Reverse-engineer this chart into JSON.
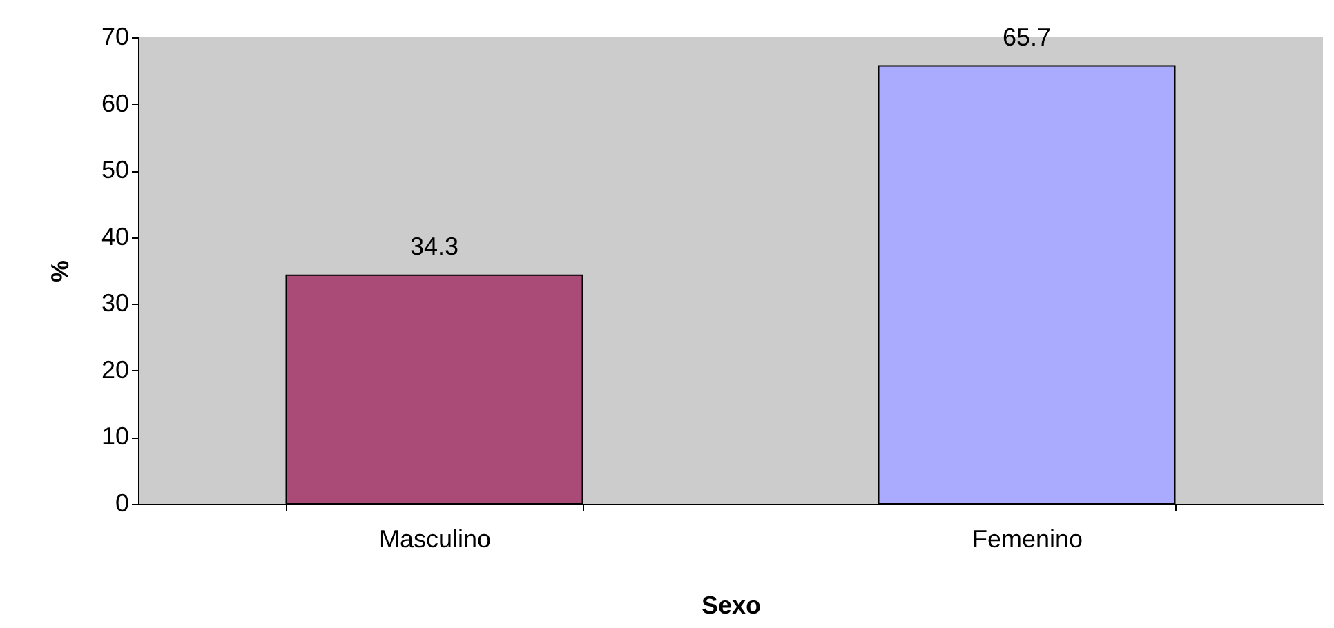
{
  "chart_data": {
    "type": "bar",
    "xlabel": "Sexo",
    "ylabel": "%",
    "categories": [
      "Masculino",
      "Femenino"
    ],
    "values": [
      34.3,
      65.7
    ],
    "colors": [
      "#a94a77",
      "#aaaaff"
    ],
    "ylim": [
      0,
      70
    ],
    "yticks": [
      0,
      10,
      20,
      30,
      40,
      50,
      60,
      70
    ],
    "grid": false,
    "data_labels": true
  }
}
